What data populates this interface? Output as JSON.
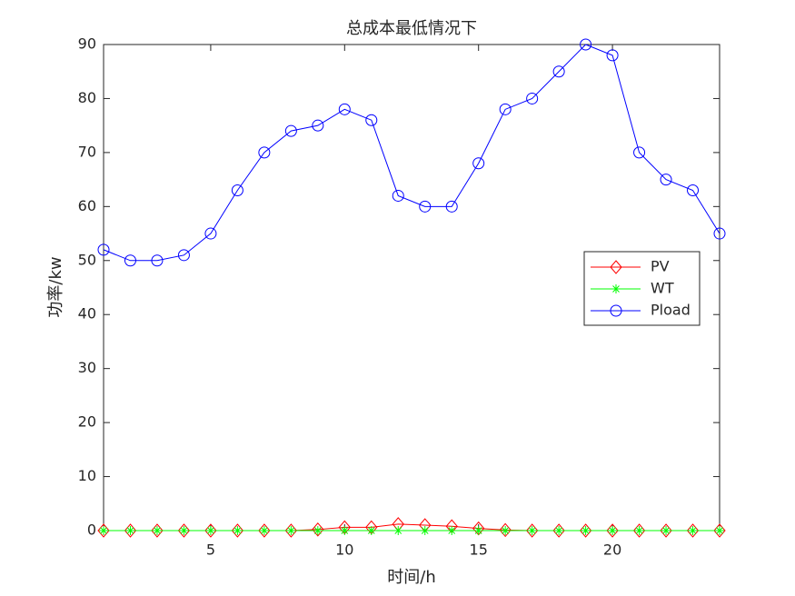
{
  "chart_data": {
    "type": "line",
    "title": "总成本最低情况下",
    "x_label": "时间/h",
    "y_label": "功率/kw",
    "x": [
      1,
      2,
      3,
      4,
      5,
      6,
      7,
      8,
      9,
      10,
      11,
      12,
      13,
      14,
      15,
      16,
      17,
      18,
      19,
      20,
      21,
      22,
      23,
      24
    ],
    "series": [
      {
        "name": "PV",
        "color": "#ff0000",
        "marker": "diamond",
        "values": [
          0,
          0,
          0,
          0,
          0,
          0,
          0,
          0,
          0.2,
          0.6,
          0.6,
          1.2,
          1.0,
          0.8,
          0.4,
          0.1,
          0,
          0,
          0,
          0,
          0,
          0,
          0,
          0
        ]
      },
      {
        "name": "WT",
        "color": "#00ff00",
        "marker": "asterisk",
        "values": [
          0,
          0,
          0,
          0,
          0,
          0,
          0,
          0,
          0,
          0,
          0,
          0,
          0,
          0,
          0,
          0,
          0,
          0,
          0,
          0,
          0,
          0,
          0,
          0
        ]
      },
      {
        "name": "Pload",
        "color": "#0000ff",
        "marker": "circle",
        "values": [
          52,
          50,
          50,
          51,
          55,
          63,
          70,
          74,
          75,
          78,
          76,
          62,
          60,
          60,
          68,
          78,
          80,
          85,
          90,
          88,
          70,
          65,
          63,
          55
        ]
      }
    ],
    "xlim": [
      1,
      24
    ],
    "xticks": [
      5,
      10,
      15,
      20
    ],
    "ylim": [
      0,
      90
    ],
    "yticks": [
      0,
      10,
      20,
      30,
      40,
      50,
      60,
      70,
      80,
      90
    ],
    "legend_location": "east"
  }
}
